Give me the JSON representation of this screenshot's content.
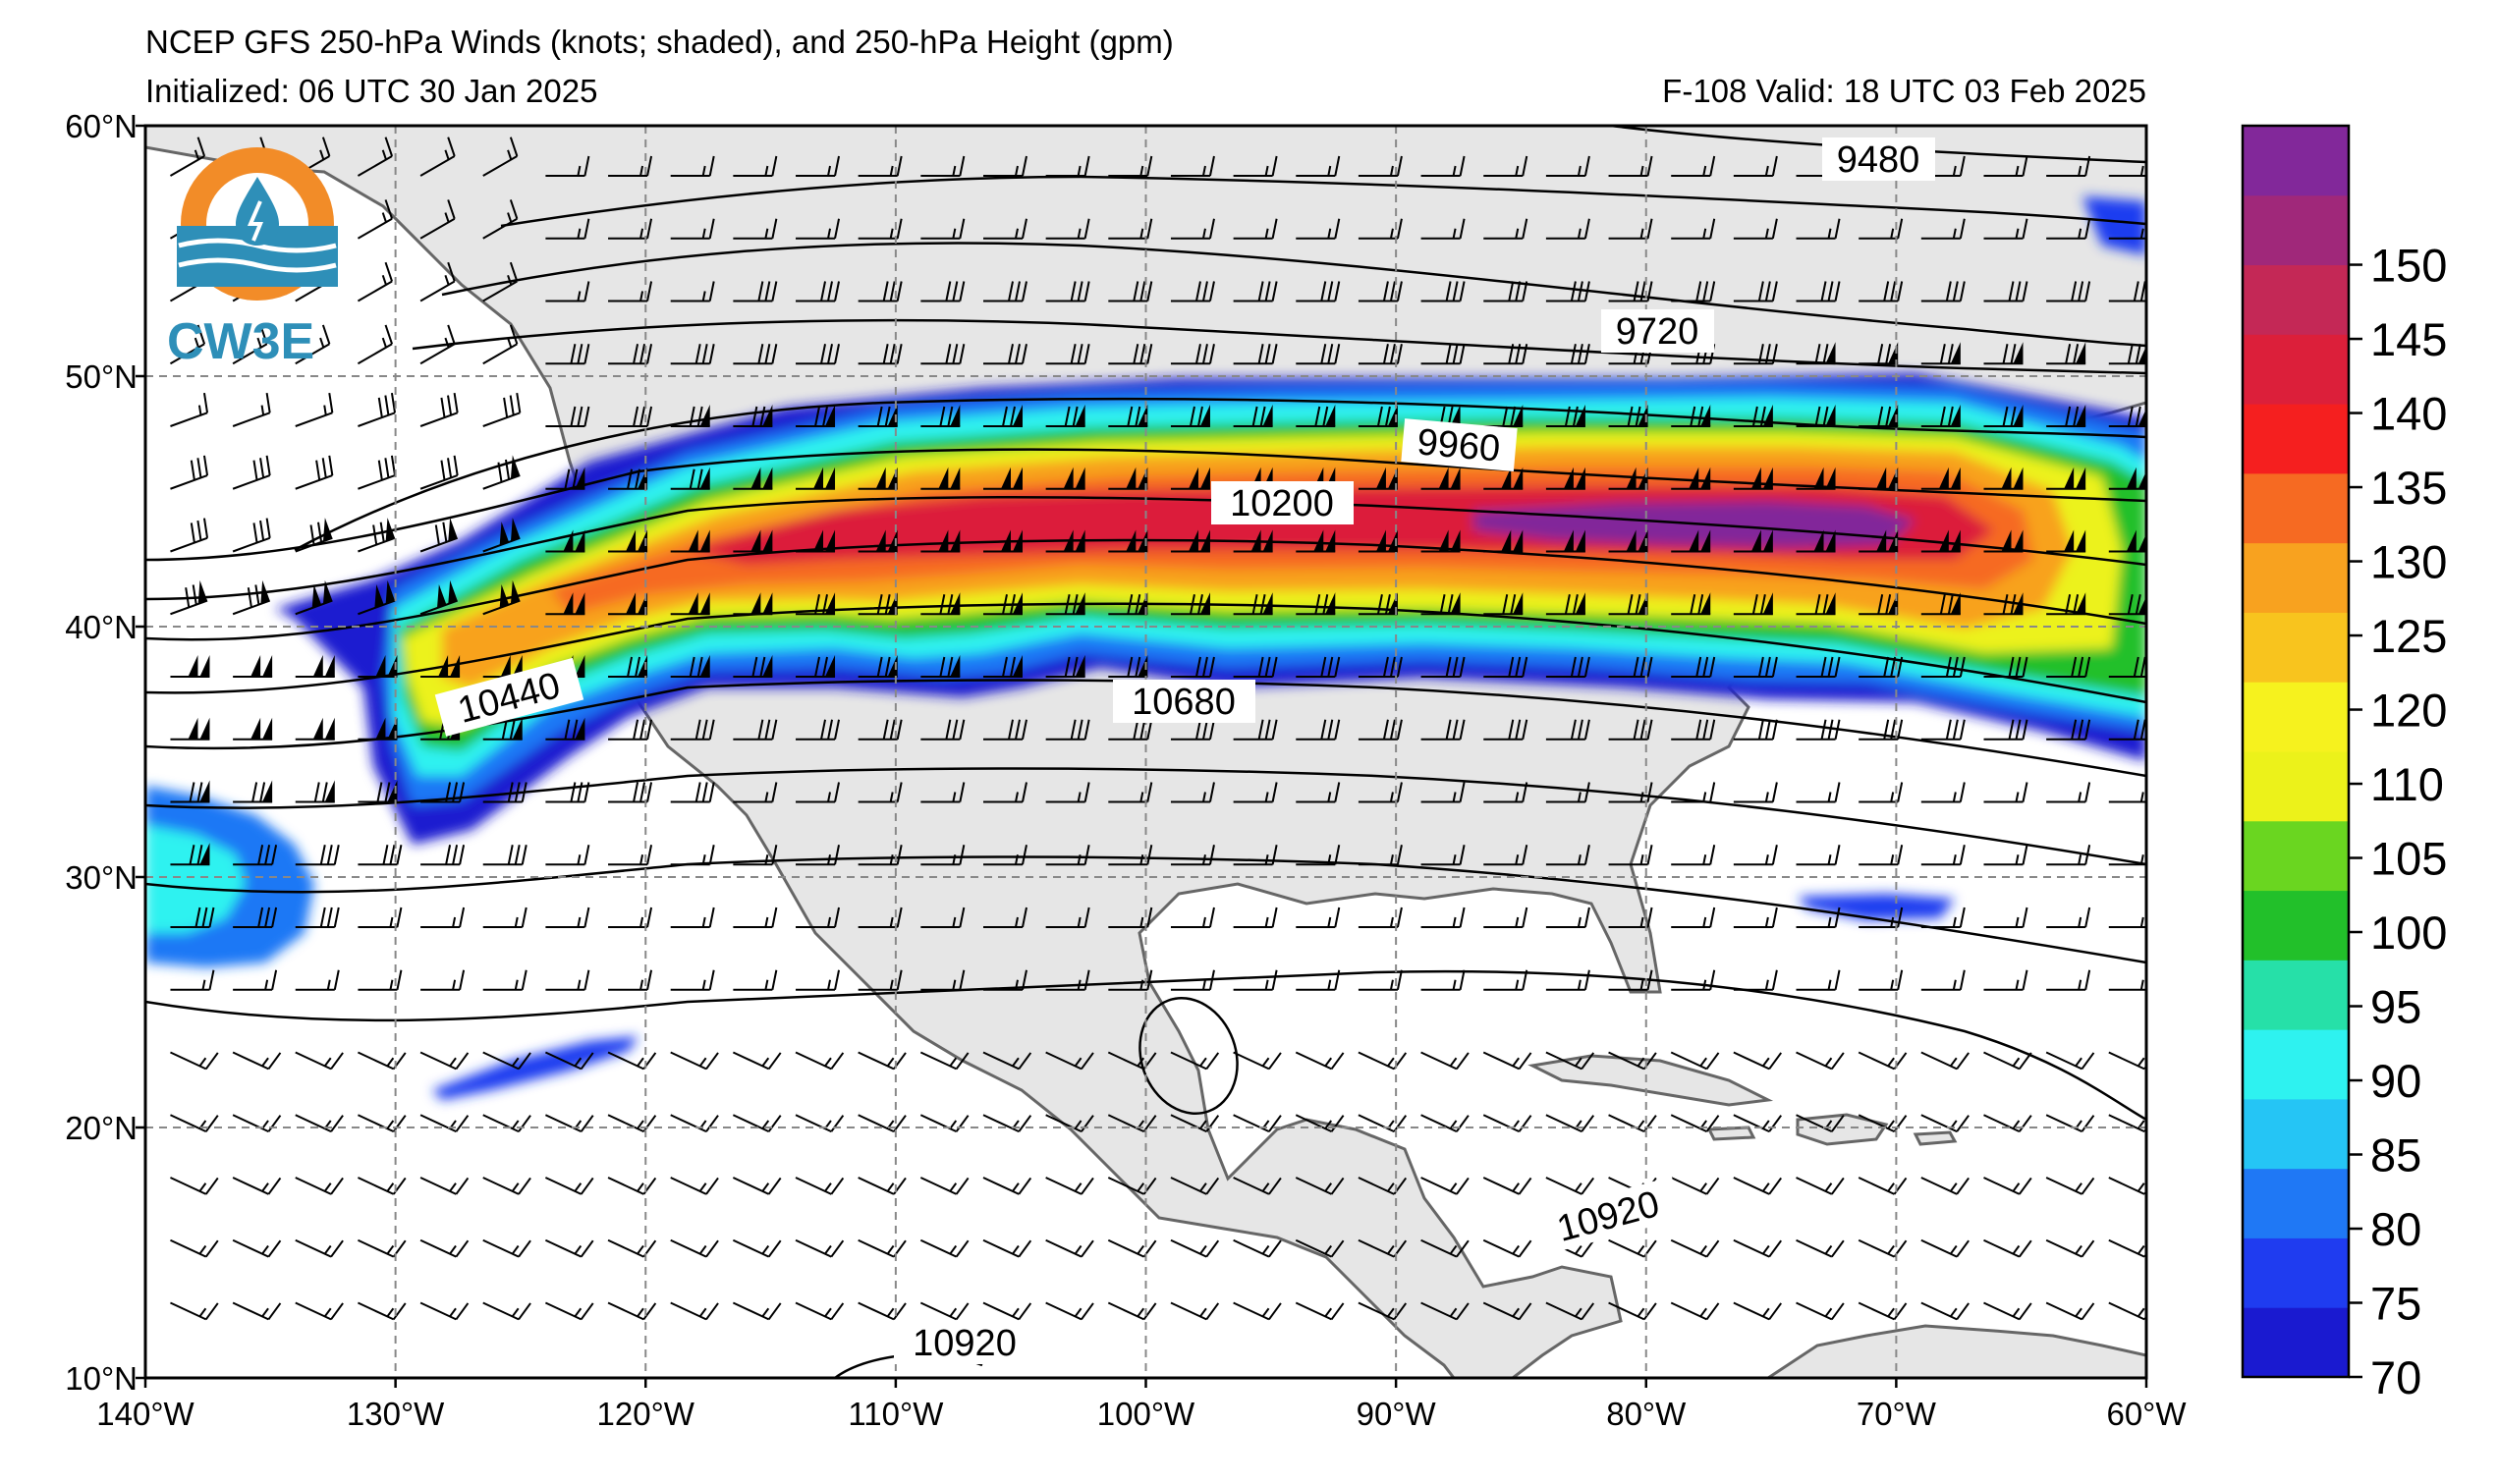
{
  "header": {
    "title": "NCEP GFS 250-hPa Winds (knots; shaded), and 250-hPa Height (gpm)",
    "initialized": "Initialized: 06 UTC 30 Jan 2025",
    "valid": "F-108  Valid: 18 UTC 03 Feb 2025"
  },
  "logo": {
    "text": "CW3E"
  },
  "map": {
    "lon_range": [
      -140,
      -60
    ],
    "lat_range": [
      10,
      60
    ],
    "lon_ticks": [
      "140°W",
      "130°W",
      "120°W",
      "110°W",
      "100°W",
      "90°W",
      "80°W",
      "70°W",
      "60°W"
    ],
    "lat_ticks": [
      "60°N",
      "50°N",
      "40°N",
      "30°N",
      "20°N",
      "10°N"
    ],
    "grid": "dashed",
    "land_color": "#e6e6e6",
    "ocean_color": "#ffffff"
  },
  "contour_labels": [
    "9480",
    "9720",
    "9960",
    "10200",
    "10440",
    "10680",
    "10920",
    "10920"
  ],
  "colorbar": {
    "labels": [
      "70",
      "75",
      "80",
      "85",
      "90",
      "95",
      "100",
      "105",
      "110",
      "120",
      "125",
      "130",
      "135",
      "140",
      "145",
      "150"
    ],
    "colors": [
      "#1a1ad0",
      "#1f3cf0",
      "#1f78f5",
      "#25c5f5",
      "#2ef2f0",
      "#26e0a8",
      "#22c02a",
      "#6ad620",
      "#ecf21a",
      "#f6f21e",
      "#f8c41e",
      "#f8a21f",
      "#f66a22",
      "#f51f1f",
      "#dc1f3a",
      "#c42856",
      "#a0287a",
      "#82289a"
    ]
  },
  "chart_data": {
    "type": "heatmap",
    "title": "NCEP GFS 250-hPa Winds (knots; shaded), and 250-hPa Height (gpm)",
    "xlabel": "",
    "ylabel": "",
    "xlim": [
      -140,
      -60
    ],
    "ylim": [
      10,
      60
    ],
    "jet_max_knots": 150,
    "height_contours_gpm": [
      9480,
      9720,
      9960,
      10200,
      10440,
      10680,
      10920
    ]
  }
}
